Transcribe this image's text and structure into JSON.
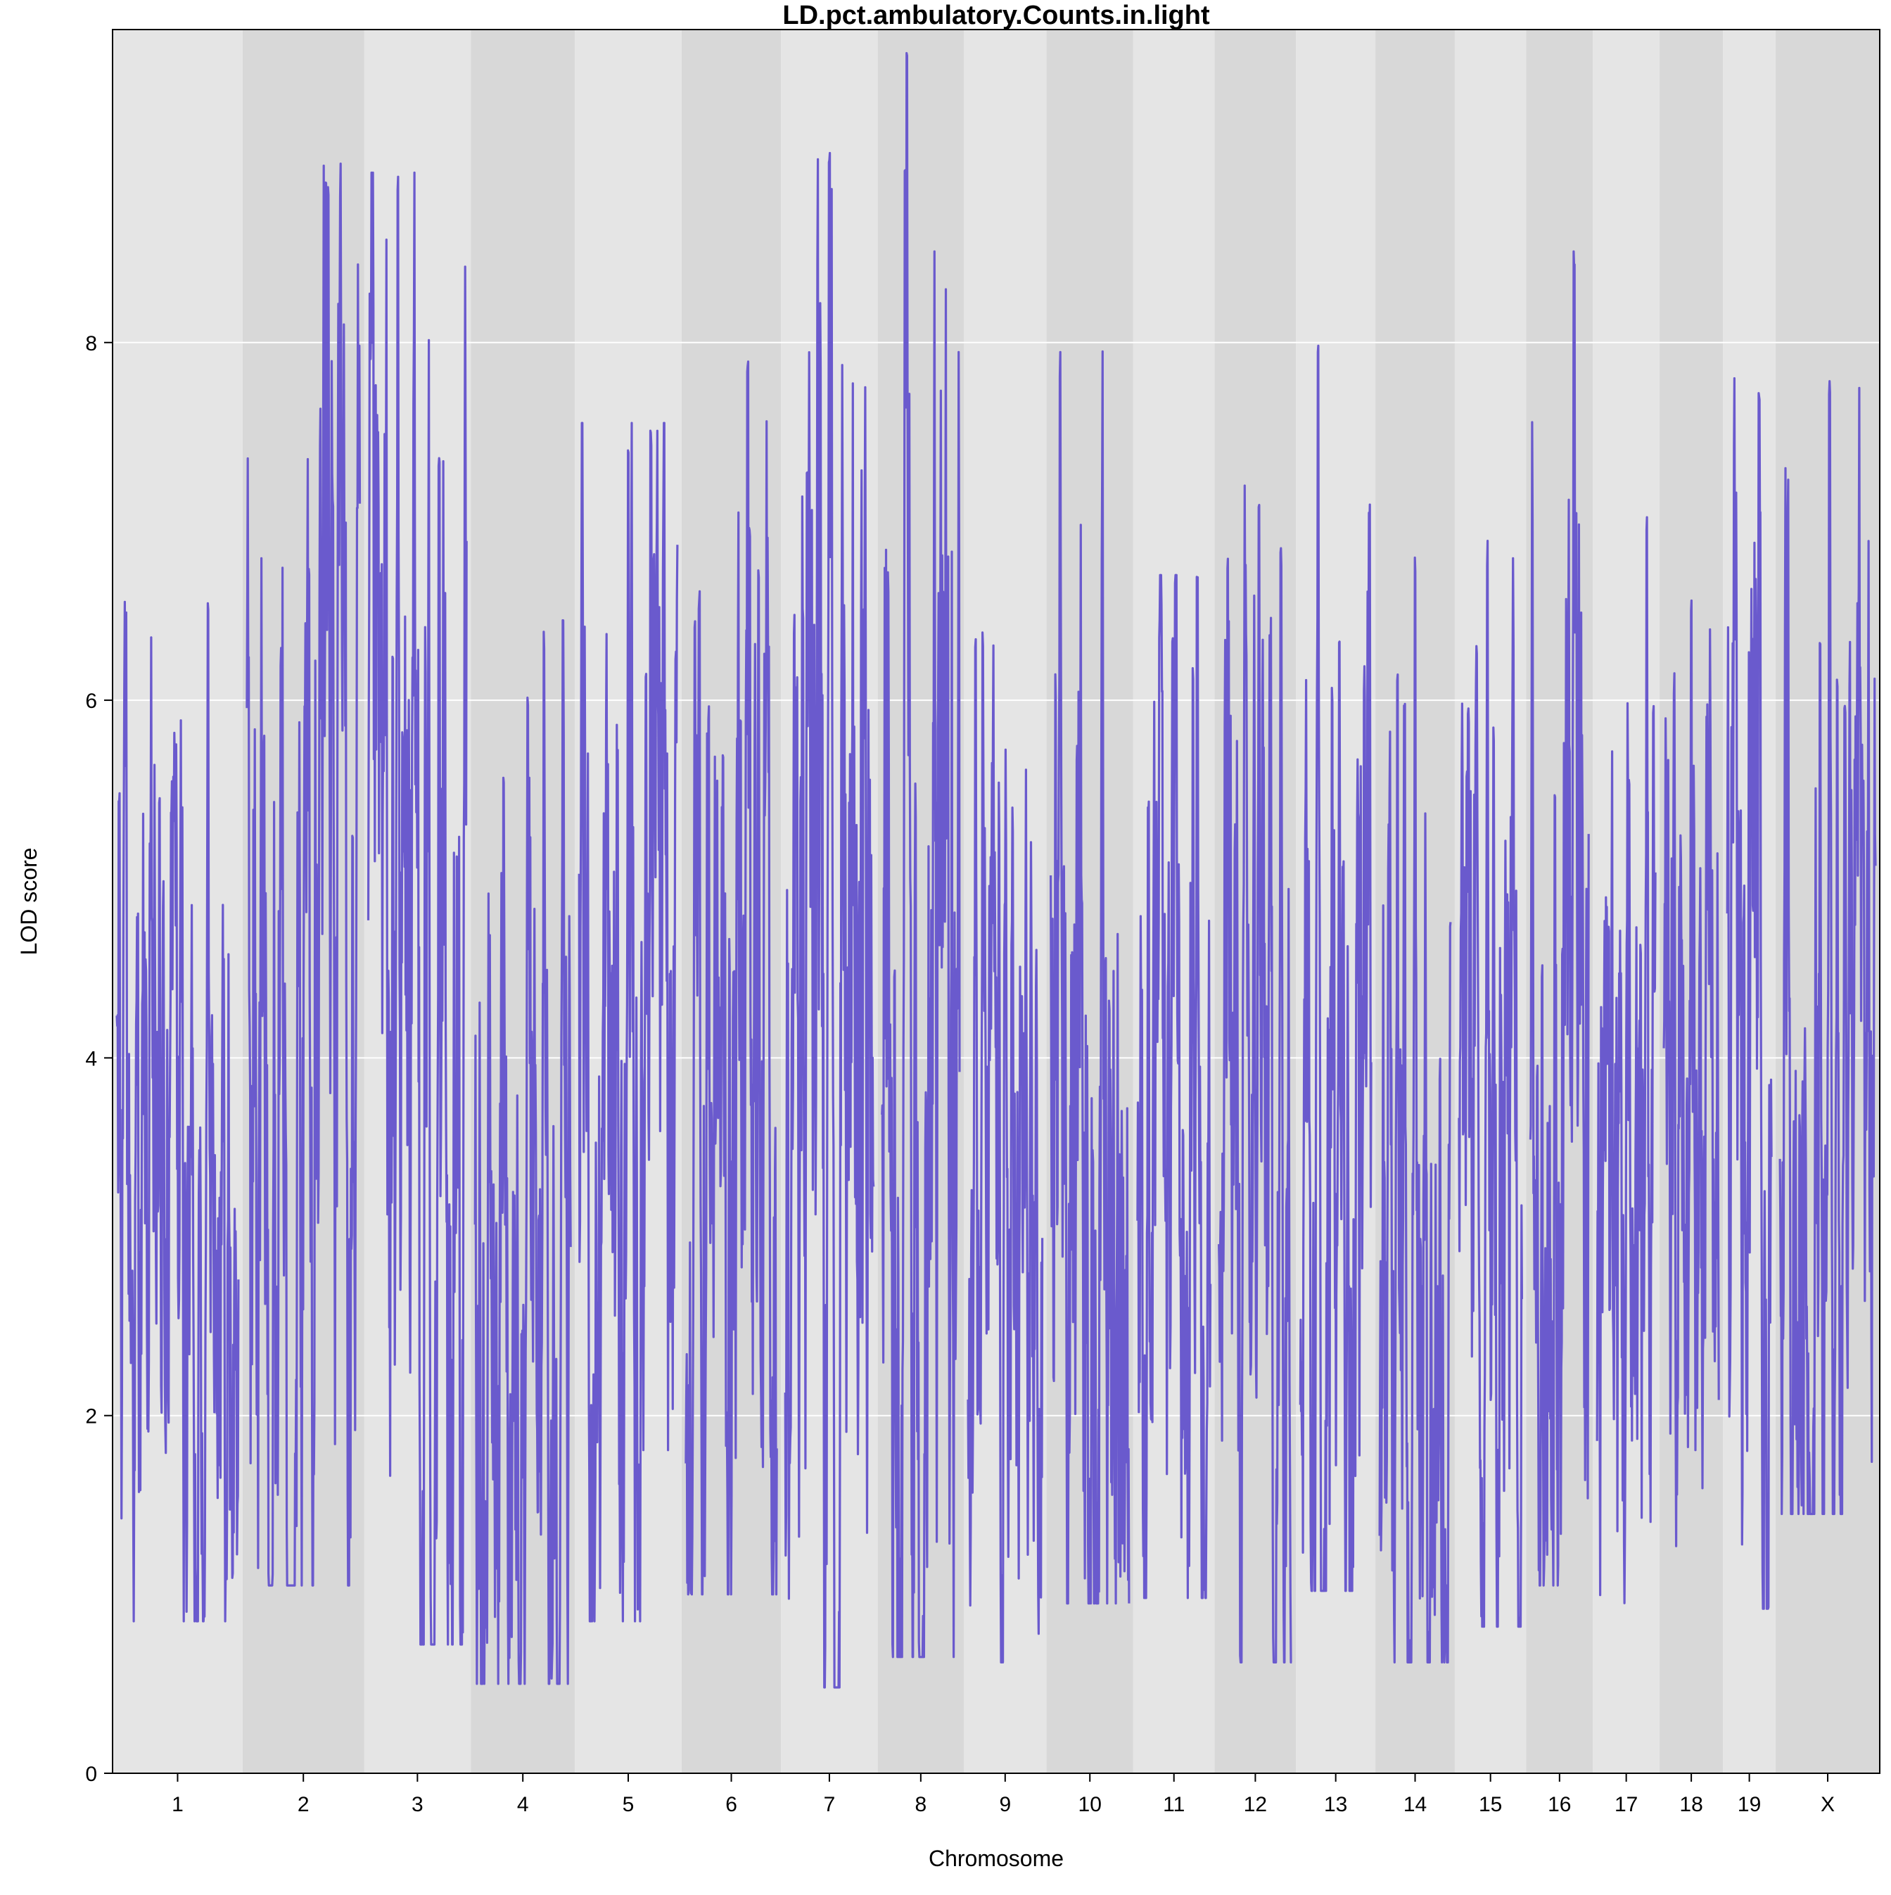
{
  "chart_data": {
    "type": "line",
    "title": "LD.pct.ambulatory.Counts.in.light",
    "xlabel": "Chromosome",
    "ylabel": "LOD score",
    "ylim": [
      0,
      9.75
    ],
    "y_ticks": [
      0,
      2,
      4,
      6,
      8
    ],
    "grid": "horizontal white gridlines",
    "alternating_band_colors": [
      "#e5e5e5",
      "#d8d8d8"
    ],
    "series": [
      {
        "color": "#6a5acd",
        "chromosomes": [
          {
            "name": "1",
            "width": 1.95,
            "min": 0.85,
            "max": 6.55,
            "peaks": [
              [
                0.02,
                5.5
              ],
              [
                0.35,
                5.5
              ],
              [
                0.45,
                5.4
              ],
              [
                0.75,
                6.55
              ]
            ]
          },
          {
            "name": "2",
            "width": 1.82,
            "min": 1.05,
            "max": 9.0,
            "peaks": [
              [
                0.3,
                6.3
              ],
              [
                0.55,
                6.8
              ],
              [
                0.7,
                9.0
              ],
              [
                0.72,
                8.9
              ],
              [
                0.76,
                7.2
              ]
            ]
          },
          {
            "name": "3",
            "width": 1.6,
            "min": 0.72,
            "max": 8.95,
            "peaks": [
              [
                0.25,
                6.3
              ],
              [
                0.3,
                8.95
              ],
              [
                0.6,
                5.7
              ],
              [
                0.72,
                7.45
              ],
              [
                0.78,
                6.6
              ]
            ]
          },
          {
            "name": "4",
            "width": 1.56,
            "min": 0.5,
            "max": 6.45,
            "peaks": [
              [
                0.3,
                5.6
              ],
              [
                0.55,
                6.1
              ],
              [
                0.72,
                6.4
              ],
              [
                0.92,
                6.45
              ]
            ]
          },
          {
            "name": "5",
            "width": 1.6,
            "min": 0.85,
            "max": 7.55,
            "peaks": [
              [
                0.5,
                7.4
              ],
              [
                0.68,
                6.2
              ],
              [
                0.73,
                7.55
              ],
              [
                0.76,
                6.9
              ]
            ]
          },
          {
            "name": "6",
            "width": 1.49,
            "min": 1.0,
            "max": 7.9,
            "peaks": [
              [
                0.1,
                6.55
              ],
              [
                0.25,
                6.0
              ],
              [
                0.6,
                6.0
              ],
              [
                0.68,
                7.9
              ],
              [
                0.7,
                7.0
              ],
              [
                0.8,
                6.8
              ]
            ]
          },
          {
            "name": "7",
            "width": 1.45,
            "min": 0.48,
            "max": 9.1,
            "peaks": [
              [
                0.1,
                6.5
              ],
              [
                0.2,
                6.6
              ],
              [
                0.5,
                9.1
              ],
              [
                0.52,
                8.9
              ],
              [
                0.9,
                5.9
              ]
            ]
          },
          {
            "name": "8",
            "width": 1.29,
            "min": 0.65,
            "max": 9.65,
            "peaks": [
              [
                0.08,
                6.75
              ],
              [
                0.3,
                9.0
              ],
              [
                0.32,
                9.65
              ],
              [
                0.35,
                7.75
              ],
              [
                0.8,
                6.2
              ]
            ]
          },
          {
            "name": "9",
            "width": 1.24,
            "min": 0.62,
            "max": 6.45,
            "peaks": [
              [
                0.1,
                6.35
              ],
              [
                0.2,
                6.45
              ],
              [
                0.6,
                5.4
              ],
              [
                0.85,
                4.2
              ]
            ]
          },
          {
            "name": "10",
            "width": 1.3,
            "min": 0.95,
            "max": 7.95,
            "peaks": [
              [
                0.06,
                6.15
              ],
              [
                0.12,
                7.95
              ],
              [
                0.4,
                4.9
              ],
              [
                0.7,
                4.65
              ]
            ]
          },
          {
            "name": "11",
            "width": 1.22,
            "min": 0.98,
            "max": 6.7,
            "peaks": [
              [
                0.15,
                5.5
              ],
              [
                0.3,
                6.45
              ],
              [
                0.48,
                6.4
              ],
              [
                0.76,
                6.2
              ],
              [
                0.82,
                6.7
              ]
            ]
          },
          {
            "name": "12",
            "width": 1.22,
            "min": 0.62,
            "max": 7.2,
            "peaks": [
              [
                0.12,
                6.85
              ],
              [
                0.55,
                7.2
              ],
              [
                0.85,
                6.9
              ]
            ]
          },
          {
            "name": "13",
            "width": 1.19,
            "min": 1.02,
            "max": 8.0,
            "peaks": [
              [
                0.25,
                8.0
              ],
              [
                0.45,
                6.1
              ],
              [
                0.55,
                6.45
              ],
              [
                0.9,
                6.2
              ]
            ]
          },
          {
            "name": "14",
            "width": 1.19,
            "min": 0.62,
            "max": 6.8,
            "peaks": [
              [
                0.25,
                6.15
              ],
              [
                0.35,
                6.0
              ],
              [
                0.5,
                6.8
              ],
              [
                0.85,
                4.0
              ]
            ]
          },
          {
            "name": "15",
            "width": 1.07,
            "min": 0.82,
            "max": 6.9,
            "peaks": [
              [
                0.15,
                6.0
              ],
              [
                0.45,
                6.9
              ],
              [
                0.55,
                5.9
              ],
              [
                0.85,
                5.4
              ]
            ]
          },
          {
            "name": "16",
            "width": 1.0,
            "min": 1.05,
            "max": 8.55,
            "peaks": [
              [
                0.2,
                4.6
              ],
              [
                0.55,
                4.7
              ],
              [
                0.75,
                8.55
              ],
              [
                0.78,
                7.1
              ]
            ]
          },
          {
            "name": "17",
            "width": 1.0,
            "min": 0.65,
            "max": 7.1,
            "peaks": [
              [
                0.2,
                4.8
              ],
              [
                0.55,
                5.65
              ],
              [
                0.85,
                7.1
              ]
            ]
          },
          {
            "name": "18",
            "width": 0.95,
            "min": 1.27,
            "max": 6.6,
            "peaks": [
              [
                0.3,
                4.6
              ],
              [
                0.5,
                6.6
              ],
              [
                0.85,
                4.7
              ]
            ]
          },
          {
            "name": "19",
            "width": 0.79,
            "min": 0.92,
            "max": 7.8,
            "peaks": [
              [
                0.1,
                5.85
              ],
              [
                0.3,
                5.4
              ],
              [
                0.72,
                7.8
              ],
              [
                0.74,
                7.1
              ]
            ]
          },
          {
            "name": "X",
            "width": 1.56,
            "min": 1.45,
            "max": 7.8,
            "peaks": [
              [
                0.42,
                6.45
              ],
              [
                0.52,
                7.8
              ],
              [
                0.6,
                6.2
              ],
              [
                0.68,
                6.0
              ],
              [
                0.95,
                4.2
              ]
            ]
          }
        ]
      }
    ]
  }
}
